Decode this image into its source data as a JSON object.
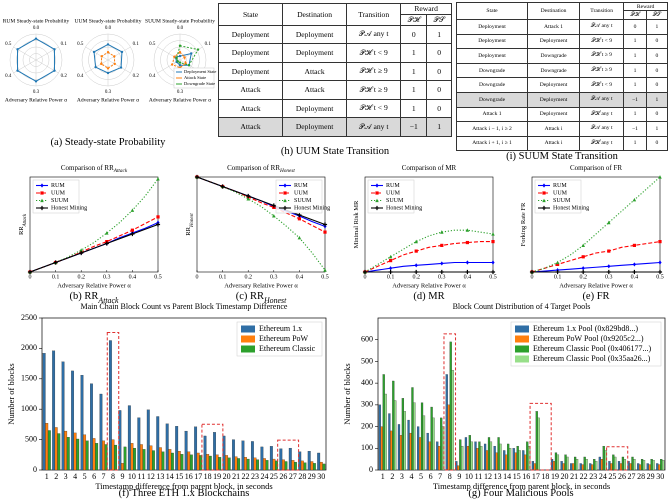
{
  "chart_data": [
    {
      "type": "radar",
      "title": "RUM Steady-state Probability",
      "xlabel": "Adversary Relative Power α",
      "categories": [
        "0.0",
        "0.1",
        "0.2",
        "0.3",
        "0.4",
        "0.5"
      ],
      "rlim": [
        0,
        1
      ],
      "legend": false,
      "series": [
        {
          "name": "Deployment State",
          "color": "#1f77b4",
          "values": [
            0.82,
            0.82,
            0.82,
            0.82,
            0.82,
            0.82
          ]
        }
      ]
    },
    {
      "type": "radar",
      "title": "UUM Steady-state Probability",
      "xlabel": "Adversary Relative Power α",
      "categories": [
        "0.0",
        "0.1",
        "0.2",
        "0.3",
        "0.4",
        "0.5"
      ],
      "rlim": [
        0,
        1
      ],
      "legend": false,
      "series": [
        {
          "name": "Deployment State",
          "color": "#1f77b4",
          "values": [
            0.6,
            0.62,
            0.58,
            0.5,
            0.55,
            0.62
          ]
        },
        {
          "name": "Attack State",
          "color": "#ff7f0e",
          "values": [
            0.3,
            0.28,
            0.3,
            0.32,
            0.3,
            0.28
          ]
        }
      ]
    },
    {
      "type": "radar",
      "title": "SUUM Steady-state Probability",
      "xlabel": "Adversary Relative Power α",
      "categories": [
        "0.0",
        "0.1",
        "0.2",
        "0.3",
        "0.4",
        "0.5"
      ],
      "rlim": [
        0,
        1
      ],
      "legend": true,
      "series": [
        {
          "name": "Deployment State",
          "color": "#1f77b4",
          "values": [
            0.15,
            0.5,
            0.4,
            0.2,
            0.15,
            0.2
          ]
        },
        {
          "name": "Attack State",
          "color": "#ff7f0e",
          "values": [
            0.3,
            0.2,
            0.25,
            0.3,
            0.35,
            0.25
          ]
        },
        {
          "name": "Downgrade State",
          "color": "#2ca02c",
          "values": [
            0.55,
            0.8,
            0.4,
            0.1,
            0.1,
            0.15
          ]
        }
      ]
    },
    {
      "type": "line",
      "title": "Comparison of RR",
      "title_sub": "Attack",
      "ylabel": "RR",
      "ylabel_sub": "Attack",
      "xlabel": "Adversary Relative Power α",
      "legend": "upper left",
      "x": [
        0,
        0.05,
        0.1,
        0.15,
        0.2,
        0.25,
        0.3,
        0.35,
        0.4,
        0.45,
        0.5
      ],
      "xlim": [
        0,
        0.5
      ],
      "xticks": [
        0,
        0.1,
        0.2,
        0.3,
        0.4,
        0.5
      ],
      "ylim": [
        0,
        1
      ],
      "series": [
        {
          "name": "RUM",
          "color": "#0000ff",
          "style": "solid",
          "marker": "diamond",
          "values": [
            0,
            0.05,
            0.1,
            0.15,
            0.2,
            0.25,
            0.3,
            0.36,
            0.41,
            0.46,
            0.52
          ]
        },
        {
          "name": "UUM",
          "color": "#ff0000",
          "style": "dashed",
          "marker": "square",
          "values": [
            0,
            0.05,
            0.1,
            0.15,
            0.21,
            0.27,
            0.32,
            0.38,
            0.44,
            0.51,
            0.58
          ]
        },
        {
          "name": "SUUM",
          "color": "#2ca02c",
          "style": "dotted",
          "marker": "triangle",
          "values": [
            0,
            0.05,
            0.1,
            0.16,
            0.23,
            0.31,
            0.41,
            0.52,
            0.65,
            0.8,
            0.98
          ]
        },
        {
          "name": "Honest Mining",
          "color": "#000000",
          "style": "solid",
          "marker": "plus",
          "values": [
            0,
            0.05,
            0.1,
            0.15,
            0.2,
            0.25,
            0.3,
            0.35,
            0.4,
            0.45,
            0.5
          ]
        }
      ]
    },
    {
      "type": "line",
      "title": "Comparison of RR",
      "title_sub": "Honest",
      "ylabel": "RR",
      "ylabel_sub": "Honest",
      "xlabel": "Adversary Relative Power α",
      "legend": "upper right",
      "x": [
        0,
        0.05,
        0.1,
        0.15,
        0.2,
        0.25,
        0.3,
        0.35,
        0.4,
        0.45,
        0.5
      ],
      "xlim": [
        0,
        0.5
      ],
      "xticks": [
        0,
        0.1,
        0.2,
        0.3,
        0.4,
        0.5
      ],
      "ylim": [
        0,
        1
      ],
      "series": [
        {
          "name": "RUM",
          "color": "#0000ff",
          "style": "solid",
          "marker": "diamond",
          "values": [
            1,
            0.95,
            0.9,
            0.85,
            0.8,
            0.75,
            0.69,
            0.64,
            0.59,
            0.53,
            0.48
          ]
        },
        {
          "name": "UUM",
          "color": "#ff0000",
          "style": "dashed",
          "marker": "square",
          "values": [
            1,
            0.95,
            0.9,
            0.85,
            0.79,
            0.73,
            0.68,
            0.62,
            0.56,
            0.49,
            0.42
          ]
        },
        {
          "name": "SUUM",
          "color": "#2ca02c",
          "style": "dotted",
          "marker": "triangle",
          "values": [
            1,
            0.95,
            0.9,
            0.84,
            0.77,
            0.69,
            0.59,
            0.48,
            0.36,
            0.2,
            0.02
          ]
        },
        {
          "name": "Honest Mining",
          "color": "#000000",
          "style": "solid",
          "marker": "plus",
          "values": [
            1,
            0.95,
            0.9,
            0.85,
            0.8,
            0.75,
            0.7,
            0.65,
            0.6,
            0.55,
            0.5
          ]
        }
      ]
    },
    {
      "type": "line",
      "title": "Comparison of MR",
      "ylabel": "Minimal Risk MR",
      "xlabel": "Adversary Relative Power α",
      "legend": "upper left",
      "x": [
        0,
        0.05,
        0.1,
        0.15,
        0.2,
        0.25,
        0.3,
        0.35,
        0.4,
        0.45,
        0.5
      ],
      "xlim": [
        0,
        0.5
      ],
      "xticks": [
        0,
        0.1,
        0.2,
        0.3,
        0.4,
        0.5
      ],
      "ylim": [
        0,
        0.5
      ],
      "series": [
        {
          "name": "RUM",
          "color": "#0000ff",
          "style": "solid",
          "marker": "diamond",
          "values": [
            0,
            0.01,
            0.02,
            0.03,
            0.035,
            0.04,
            0.045,
            0.05,
            0.05,
            0.05,
            0.05
          ]
        },
        {
          "name": "UUM",
          "color": "#ff0000",
          "style": "dashed",
          "marker": "square",
          "values": [
            0,
            0.03,
            0.06,
            0.09,
            0.11,
            0.13,
            0.14,
            0.15,
            0.155,
            0.16,
            0.16
          ]
        },
        {
          "name": "SUUM",
          "color": "#2ca02c",
          "style": "dotted",
          "marker": "triangle",
          "values": [
            0,
            0.04,
            0.08,
            0.12,
            0.16,
            0.19,
            0.21,
            0.22,
            0.22,
            0.21,
            0.2
          ]
        },
        {
          "name": "Honest Mining",
          "color": "#000000",
          "style": "solid",
          "marker": "plus",
          "values": [
            0,
            0,
            0,
            0,
            0,
            0,
            0,
            0,
            0,
            0,
            0
          ]
        }
      ]
    },
    {
      "type": "line",
      "title": "Comparison of FR",
      "ylabel": "Forking Rate FR",
      "xlabel": "Adversary Relative Power α",
      "legend": "upper left",
      "x": [
        0,
        0.05,
        0.1,
        0.15,
        0.2,
        0.25,
        0.3,
        0.35,
        0.4,
        0.45,
        0.5
      ],
      "xlim": [
        0,
        0.5
      ],
      "xticks": [
        0,
        0.1,
        0.2,
        0.3,
        0.4,
        0.5
      ],
      "ylim": [
        0,
        0.5
      ],
      "series": [
        {
          "name": "RUM",
          "color": "#0000ff",
          "style": "solid",
          "marker": "diamond",
          "values": [
            0,
            0.005,
            0.01,
            0.015,
            0.02,
            0.025,
            0.03,
            0.035,
            0.04,
            0.045,
            0.05
          ]
        },
        {
          "name": "UUM",
          "color": "#ff0000",
          "style": "dashed",
          "marker": "square",
          "values": [
            0,
            0.02,
            0.04,
            0.06,
            0.08,
            0.1,
            0.11,
            0.13,
            0.14,
            0.15,
            0.16
          ]
        },
        {
          "name": "SUUM",
          "color": "#2ca02c",
          "style": "dotted",
          "marker": "triangle",
          "values": [
            0,
            0.02,
            0.05,
            0.09,
            0.14,
            0.2,
            0.26,
            0.32,
            0.38,
            0.44,
            0.5
          ]
        },
        {
          "name": "Honest Mining",
          "color": "#000000",
          "style": "solid",
          "marker": "plus",
          "values": [
            0,
            0,
            0,
            0,
            0,
            0,
            0,
            0,
            0,
            0,
            0
          ]
        }
      ]
    },
    {
      "type": "bar",
      "title": "Main Chain Block Count vs Parent Block Timestamp Difference",
      "xlabel": "Timestamp difference from parent block, in seconds",
      "ylabel": "Number of blocks",
      "legend": "upper right",
      "categories": [
        "1",
        "2",
        "3",
        "4",
        "5",
        "6",
        "7",
        "8",
        "9",
        "10",
        "11",
        "12",
        "13",
        "14",
        "15",
        "16",
        "17",
        "18",
        "19",
        "20",
        "21",
        "22",
        "23",
        "24",
        "25",
        "26",
        "27",
        "28",
        "29",
        "30"
      ],
      "ylim": [
        0,
        2500
      ],
      "yticks": [
        0,
        500,
        1000,
        1500,
        2000,
        2500
      ],
      "series": [
        {
          "name": "Ethereum 1.x",
          "color": "#2f6ea5",
          "values": [
            1920,
            1960,
            1780,
            1630,
            1560,
            1420,
            1250,
            2130,
            980,
            1060,
            860,
            990,
            880,
            760,
            720,
            640,
            710,
            560,
            620,
            560,
            500,
            480,
            470,
            380,
            390,
            350,
            360,
            300,
            310,
            280
          ]
        },
        {
          "name": "Ethereum PoW",
          "color": "#ff7f0e",
          "values": [
            770,
            700,
            640,
            610,
            580,
            520,
            480,
            500,
            110,
            440,
            420,
            400,
            370,
            340,
            310,
            300,
            280,
            260,
            250,
            240,
            220,
            210,
            200,
            190,
            180,
            170,
            160,
            150,
            140,
            130
          ]
        },
        {
          "name": "Ethereum Classic",
          "color": "#2ca02c",
          "values": [
            650,
            600,
            540,
            510,
            480,
            440,
            420,
            410,
            380,
            360,
            340,
            320,
            300,
            280,
            260,
            250,
            240,
            230,
            210,
            200,
            190,
            180,
            170,
            160,
            150,
            140,
            130,
            120,
            110,
            100
          ]
        }
      ]
    },
    {
      "type": "bar",
      "title": "Block Count Distribution of 4 Target Pools",
      "xlabel": "Timestamp difference from parent block, in seconds",
      "ylabel": "Number of blocks",
      "legend": "upper right",
      "categories": [
        "1",
        "2",
        "3",
        "4",
        "5",
        "6",
        "7",
        "8",
        "9",
        "10",
        "11",
        "12",
        "13",
        "14",
        "15",
        "16",
        "17",
        "18",
        "19",
        "20",
        "21",
        "22",
        "23",
        "24",
        "25",
        "26",
        "27",
        "28",
        "29",
        "30"
      ],
      "ylim": [
        0,
        700
      ],
      "yticks": [
        0,
        100,
        200,
        300,
        400,
        500,
        600
      ],
      "series": [
        {
          "name": "Ethereum 1.x Pool (0x829bd8...)",
          "color": "#2f6ea5",
          "values": [
            300,
            260,
            210,
            230,
            200,
            170,
            130,
            440,
            40,
            150,
            130,
            120,
            110,
            90,
            100,
            90,
            40,
            0,
            50,
            40,
            30,
            30,
            30,
            60,
            40,
            40,
            40,
            30,
            30,
            30
          ]
        },
        {
          "name": "Ethereum PoW Pool (0x9205c2...)",
          "color": "#ff7f0e",
          "values": [
            200,
            180,
            160,
            170,
            150,
            130,
            110,
            300,
            20,
            110,
            100,
            90,
            80,
            70,
            80,
            70,
            30,
            0,
            40,
            30,
            30,
            25,
            25,
            50,
            30,
            30,
            30,
            25,
            25,
            25
          ]
        },
        {
          "name": "Ethereum Classic Pool (0x406177...)",
          "color": "#2ca02c",
          "values": [
            440,
            410,
            330,
            380,
            310,
            290,
            240,
            590,
            140,
            160,
            130,
            150,
            150,
            120,
            110,
            130,
            270,
            0,
            80,
            70,
            60,
            60,
            50,
            110,
            70,
            60,
            60,
            50,
            50,
            50
          ]
        },
        {
          "name": "Ethereum Classic Pool (0x35aa26...)",
          "color": "#98df8a",
          "values": [
            350,
            320,
            270,
            310,
            250,
            240,
            200,
            460,
            110,
            130,
            110,
            130,
            120,
            100,
            90,
            110,
            240,
            0,
            70,
            60,
            50,
            50,
            40,
            90,
            60,
            50,
            50,
            45,
            45,
            45
          ]
        }
      ]
    }
  ],
  "tables": [
    {
      "header": [
        "State",
        "Destination",
        "Transition"
      ],
      "reward": "Reward",
      "reward_cols": [
        "𝒫ℋ",
        "𝒫𝒮"
      ],
      "shaded_row": 5,
      "rows": [
        [
          "Deployment",
          "Deployment",
          "𝒫𝒜  any t",
          "0",
          "1"
        ],
        [
          "Deployment",
          "Deployment",
          "𝒫ℋ  t < 9",
          "1",
          "0"
        ],
        [
          "Deployment",
          "Attack",
          "𝒫ℋ  t ≥ 9",
          "1",
          "0"
        ],
        [
          "Attack",
          "Attack",
          "𝒫ℋ  t ≥ 9",
          "1",
          "0"
        ],
        [
          "Attack",
          "Deployment",
          "𝒫ℋ  t < 9",
          "1",
          "0"
        ],
        [
          "Attack",
          "Deployment",
          "𝒫𝒜  any t",
          "−1",
          "1"
        ]
      ]
    },
    {
      "header": [
        "State",
        "Destination",
        "Transition"
      ],
      "reward": "Reward",
      "reward_cols": [
        "𝒫ℋ",
        "𝒫𝒮"
      ],
      "shaded_row": 5,
      "rows": [
        [
          "Deployment",
          "Attack 1",
          "𝒫𝒜  any t",
          "0",
          "1"
        ],
        [
          "Deployment",
          "Deployment",
          "𝒫ℋ  t < 9",
          "1",
          "0"
        ],
        [
          "Deployment",
          "Downgrade",
          "𝒫ℋ  t ≥ 9",
          "1",
          "0"
        ],
        [
          "Downgrade",
          "Downgrade",
          "𝒫ℋ  t ≥ 9",
          "1",
          "0"
        ],
        [
          "Downgrade",
          "Deployment",
          "𝒫ℋ  t < 9",
          "1",
          "0"
        ],
        [
          "Downgrade",
          "Deployment",
          "𝒫𝒜  any t",
          "−1",
          "1"
        ],
        [
          "Attack 1",
          "Deployment",
          "𝒫ℋ  any t",
          "1",
          "0"
        ],
        [
          "Attack i − 1, i ≥ 2",
          "Attack i",
          "𝒫𝒜  any t",
          "−1",
          "1"
        ],
        [
          "Attack i + 1, i ≥ 1",
          "Attack i",
          "𝒫ℋ  any t",
          "1",
          "0"
        ]
      ]
    }
  ],
  "captions": [
    {
      "text": "(a) Steady-state Probability"
    },
    {
      "text": "(h) UUM State Transition"
    },
    {
      "text": "(i) SUUM State Transition"
    },
    {
      "text": "(b) RR",
      "sub": "Attack"
    },
    {
      "text": "(c) RR",
      "sub": "Honest"
    },
    {
      "text": "(d) MR"
    },
    {
      "text": "(e) FR"
    },
    {
      "text": "(f) Three ETH 1.x Blockchains"
    },
    {
      "text": "(g) Four Malicious Pools"
    }
  ]
}
